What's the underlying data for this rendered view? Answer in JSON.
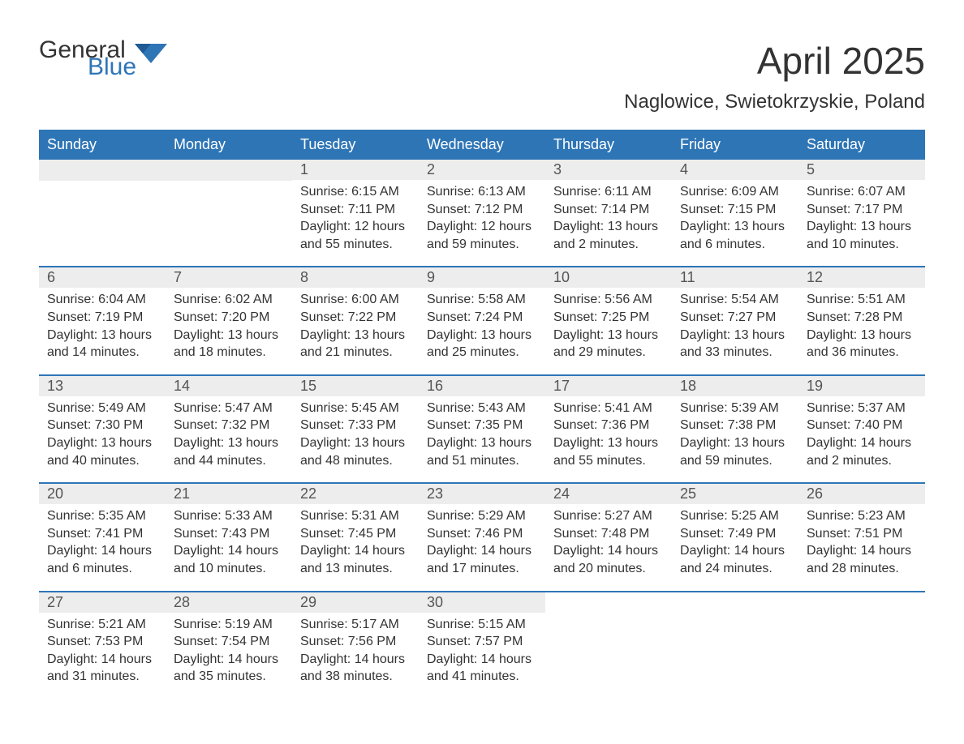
{
  "logo": {
    "general": "General",
    "blue": "Blue"
  },
  "title": "April 2025",
  "location": "Naglowice, Swietokrzyskie, Poland",
  "colors": {
    "header_bg": "#2e75b6",
    "header_text": "#ffffff",
    "daynum_bg": "#ededed",
    "body_text": "#333333",
    "border": "#2e75b6",
    "logo_blue": "#2e75b6"
  },
  "typography": {
    "title_fontsize": 46,
    "location_fontsize": 24,
    "header_fontsize": 18,
    "daynum_fontsize": 18,
    "body_fontsize": 16
  },
  "dayNames": [
    "Sunday",
    "Monday",
    "Tuesday",
    "Wednesday",
    "Thursday",
    "Friday",
    "Saturday"
  ],
  "weeks": [
    [
      {
        "num": "",
        "lines": []
      },
      {
        "num": "",
        "lines": []
      },
      {
        "num": "1",
        "lines": [
          "Sunrise: 6:15 AM",
          "Sunset: 7:11 PM",
          "Daylight: 12 hours and 55 minutes."
        ]
      },
      {
        "num": "2",
        "lines": [
          "Sunrise: 6:13 AM",
          "Sunset: 7:12 PM",
          "Daylight: 12 hours and 59 minutes."
        ]
      },
      {
        "num": "3",
        "lines": [
          "Sunrise: 6:11 AM",
          "Sunset: 7:14 PM",
          "Daylight: 13 hours and 2 minutes."
        ]
      },
      {
        "num": "4",
        "lines": [
          "Sunrise: 6:09 AM",
          "Sunset: 7:15 PM",
          "Daylight: 13 hours and 6 minutes."
        ]
      },
      {
        "num": "5",
        "lines": [
          "Sunrise: 6:07 AM",
          "Sunset: 7:17 PM",
          "Daylight: 13 hours and 10 minutes."
        ]
      }
    ],
    [
      {
        "num": "6",
        "lines": [
          "Sunrise: 6:04 AM",
          "Sunset: 7:19 PM",
          "Daylight: 13 hours and 14 minutes."
        ]
      },
      {
        "num": "7",
        "lines": [
          "Sunrise: 6:02 AM",
          "Sunset: 7:20 PM",
          "Daylight: 13 hours and 18 minutes."
        ]
      },
      {
        "num": "8",
        "lines": [
          "Sunrise: 6:00 AM",
          "Sunset: 7:22 PM",
          "Daylight: 13 hours and 21 minutes."
        ]
      },
      {
        "num": "9",
        "lines": [
          "Sunrise: 5:58 AM",
          "Sunset: 7:24 PM",
          "Daylight: 13 hours and 25 minutes."
        ]
      },
      {
        "num": "10",
        "lines": [
          "Sunrise: 5:56 AM",
          "Sunset: 7:25 PM",
          "Daylight: 13 hours and 29 minutes."
        ]
      },
      {
        "num": "11",
        "lines": [
          "Sunrise: 5:54 AM",
          "Sunset: 7:27 PM",
          "Daylight: 13 hours and 33 minutes."
        ]
      },
      {
        "num": "12",
        "lines": [
          "Sunrise: 5:51 AM",
          "Sunset: 7:28 PM",
          "Daylight: 13 hours and 36 minutes."
        ]
      }
    ],
    [
      {
        "num": "13",
        "lines": [
          "Sunrise: 5:49 AM",
          "Sunset: 7:30 PM",
          "Daylight: 13 hours and 40 minutes."
        ]
      },
      {
        "num": "14",
        "lines": [
          "Sunrise: 5:47 AM",
          "Sunset: 7:32 PM",
          "Daylight: 13 hours and 44 minutes."
        ]
      },
      {
        "num": "15",
        "lines": [
          "Sunrise: 5:45 AM",
          "Sunset: 7:33 PM",
          "Daylight: 13 hours and 48 minutes."
        ]
      },
      {
        "num": "16",
        "lines": [
          "Sunrise: 5:43 AM",
          "Sunset: 7:35 PM",
          "Daylight: 13 hours and 51 minutes."
        ]
      },
      {
        "num": "17",
        "lines": [
          "Sunrise: 5:41 AM",
          "Sunset: 7:36 PM",
          "Daylight: 13 hours and 55 minutes."
        ]
      },
      {
        "num": "18",
        "lines": [
          "Sunrise: 5:39 AM",
          "Sunset: 7:38 PM",
          "Daylight: 13 hours and 59 minutes."
        ]
      },
      {
        "num": "19",
        "lines": [
          "Sunrise: 5:37 AM",
          "Sunset: 7:40 PM",
          "Daylight: 14 hours and 2 minutes."
        ]
      }
    ],
    [
      {
        "num": "20",
        "lines": [
          "Sunrise: 5:35 AM",
          "Sunset: 7:41 PM",
          "Daylight: 14 hours and 6 minutes."
        ]
      },
      {
        "num": "21",
        "lines": [
          "Sunrise: 5:33 AM",
          "Sunset: 7:43 PM",
          "Daylight: 14 hours and 10 minutes."
        ]
      },
      {
        "num": "22",
        "lines": [
          "Sunrise: 5:31 AM",
          "Sunset: 7:45 PM",
          "Daylight: 14 hours and 13 minutes."
        ]
      },
      {
        "num": "23",
        "lines": [
          "Sunrise: 5:29 AM",
          "Sunset: 7:46 PM",
          "Daylight: 14 hours and 17 minutes."
        ]
      },
      {
        "num": "24",
        "lines": [
          "Sunrise: 5:27 AM",
          "Sunset: 7:48 PM",
          "Daylight: 14 hours and 20 minutes."
        ]
      },
      {
        "num": "25",
        "lines": [
          "Sunrise: 5:25 AM",
          "Sunset: 7:49 PM",
          "Daylight: 14 hours and 24 minutes."
        ]
      },
      {
        "num": "26",
        "lines": [
          "Sunrise: 5:23 AM",
          "Sunset: 7:51 PM",
          "Daylight: 14 hours and 28 minutes."
        ]
      }
    ],
    [
      {
        "num": "27",
        "lines": [
          "Sunrise: 5:21 AM",
          "Sunset: 7:53 PM",
          "Daylight: 14 hours and 31 minutes."
        ]
      },
      {
        "num": "28",
        "lines": [
          "Sunrise: 5:19 AM",
          "Sunset: 7:54 PM",
          "Daylight: 14 hours and 35 minutes."
        ]
      },
      {
        "num": "29",
        "lines": [
          "Sunrise: 5:17 AM",
          "Sunset: 7:56 PM",
          "Daylight: 14 hours and 38 minutes."
        ]
      },
      {
        "num": "30",
        "lines": [
          "Sunrise: 5:15 AM",
          "Sunset: 7:57 PM",
          "Daylight: 14 hours and 41 minutes."
        ]
      },
      {
        "num": "",
        "lines": []
      },
      {
        "num": "",
        "lines": []
      },
      {
        "num": "",
        "lines": []
      }
    ]
  ]
}
